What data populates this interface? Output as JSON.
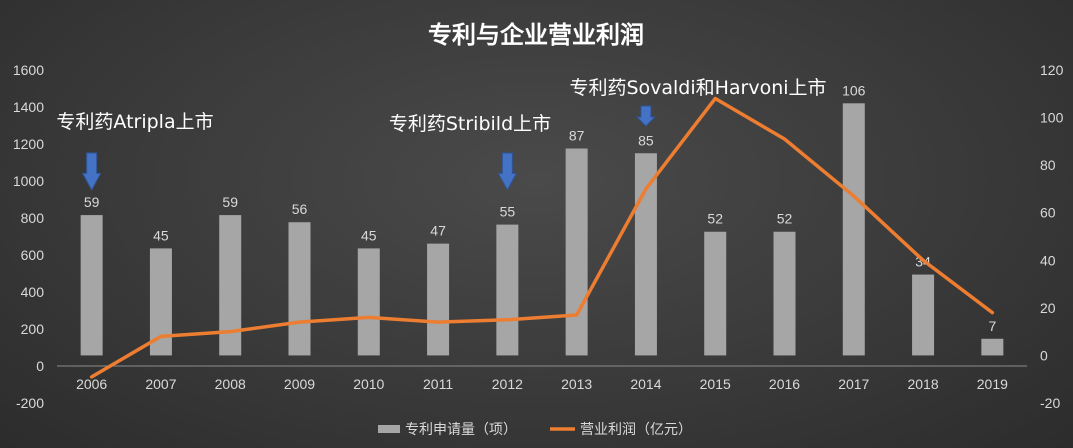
{
  "chart_data": {
    "type": "bar",
    "title": "专利与企业营业利润",
    "categories": [
      "2006",
      "2007",
      "2008",
      "2009",
      "2010",
      "2011",
      "2012",
      "2013",
      "2014",
      "2015",
      "2016",
      "2017",
      "2018",
      "2019"
    ],
    "series": [
      {
        "name": "专利申请量（项）",
        "type": "bar",
        "axis": "left",
        "values": [
          59,
          45,
          59,
          56,
          45,
          47,
          55,
          87,
          85,
          52,
          52,
          106,
          34,
          7
        ],
        "color": "#a6a6a6"
      },
      {
        "name": "营业利润（亿元）",
        "type": "line",
        "axis": "right",
        "values": [
          -9,
          8,
          10,
          14,
          16,
          14,
          15,
          17,
          70,
          108,
          91,
          67,
          40,
          18
        ],
        "color": "#ed7d31"
      }
    ],
    "y_left": {
      "min": -200,
      "max": 1600,
      "ticks": [
        "-200",
        "0",
        "200",
        "400",
        "600",
        "800",
        "1000",
        "1200",
        "1400",
        "1600"
      ]
    },
    "y_right": {
      "min": -20,
      "max": 120,
      "ticks": [
        "-20",
        "0",
        "20",
        "40",
        "60",
        "80",
        "100",
        "120"
      ]
    },
    "annotations": [
      {
        "text": "专利药Atripla上市",
        "category": "2006",
        "arrow": true
      },
      {
        "text": "专利药Stribild上市",
        "category": "2012",
        "arrow": true
      },
      {
        "text": "专利药Sovaldi和Harvoni上市",
        "category": "2014",
        "arrow": true
      }
    ],
    "legend_position": "bottom",
    "grid": false
  }
}
